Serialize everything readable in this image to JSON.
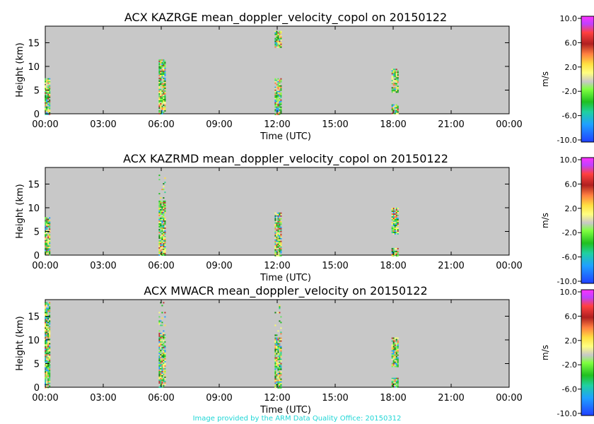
{
  "chart_data": [
    {
      "type": "heatmap",
      "title": "ACX KAZRGE mean_doppler_velocity_copol on 20150122",
      "xlabel": "Time (UTC)",
      "ylabel": "Height (km)",
      "xlim": [
        0,
        24
      ],
      "ylim": [
        0,
        18.5
      ],
      "x_ticks": [
        "00:00",
        "03:00",
        "06:00",
        "09:00",
        "12:00",
        "15:00",
        "18:00",
        "21:00",
        "00:00"
      ],
      "y_ticks": [
        0,
        5,
        10,
        15
      ],
      "colorbar": {
        "label": "m/s",
        "range": [
          -10,
          10
        ],
        "ticks": [
          "10.0",
          "6.0",
          "2.0",
          "-2.0",
          "-6.0",
          "-10.0"
        ]
      },
      "echo_columns": [
        {
          "time_h": 0.1,
          "base_km": 0,
          "top_km": 7.5
        },
        {
          "time_h": 6.05,
          "base_km": 0,
          "top_km": 11.5
        },
        {
          "time_h": 12.05,
          "base_km": 0,
          "top_km": 7.5
        },
        {
          "time_h": 12.05,
          "base_km": 14,
          "top_km": 17.5
        },
        {
          "time_h": 18.1,
          "base_km": 0,
          "top_km": 2
        },
        {
          "time_h": 18.1,
          "base_km": 4.5,
          "top_km": 9.5
        }
      ]
    },
    {
      "type": "heatmap",
      "title": "ACX KAZRMD mean_doppler_velocity_copol on 20150122",
      "xlabel": "Time (UTC)",
      "ylabel": "Height (km)",
      "xlim": [
        0,
        24
      ],
      "ylim": [
        0,
        18.5
      ],
      "x_ticks": [
        "00:00",
        "03:00",
        "06:00",
        "09:00",
        "12:00",
        "15:00",
        "18:00",
        "21:00",
        "00:00"
      ],
      "y_ticks": [
        0,
        5,
        10,
        15
      ],
      "colorbar": {
        "label": "m/s",
        "range": [
          -10,
          10
        ],
        "ticks": [
          "10.0",
          "6.0",
          "2.0",
          "-2.0",
          "-6.0",
          "-10.0"
        ]
      },
      "echo_columns": [
        {
          "time_h": 0.1,
          "base_km": 0,
          "top_km": 8
        },
        {
          "time_h": 6.05,
          "base_km": 0,
          "top_km": 11.5
        },
        {
          "time_h": 6.05,
          "base_km": 12,
          "top_km": 17
        },
        {
          "time_h": 12.05,
          "base_km": 0,
          "top_km": 9
        },
        {
          "time_h": 18.1,
          "base_km": 0,
          "top_km": 1.5
        },
        {
          "time_h": 18.1,
          "base_km": 4.5,
          "top_km": 10
        }
      ]
    },
    {
      "type": "heatmap",
      "title": "ACX MWACR mean_doppler_velocity on 20150122",
      "xlabel": "Time (UTC)",
      "ylabel": "Height (km)",
      "xlim": [
        0,
        24
      ],
      "ylim": [
        0,
        18.5
      ],
      "x_ticks": [
        "00:00",
        "03:00",
        "06:00",
        "09:00",
        "12:00",
        "15:00",
        "18:00",
        "21:00",
        "00:00"
      ],
      "y_ticks": [
        0,
        5,
        10,
        15
      ],
      "colorbar": {
        "label": "m/s",
        "range": [
          -10,
          10
        ],
        "ticks": [
          "10.0",
          "6.0",
          "2.0",
          "-2.0",
          "-6.0",
          "-10.0"
        ]
      },
      "echo_columns": [
        {
          "time_h": 0.1,
          "base_km": 0,
          "top_km": 18
        },
        {
          "time_h": 6.05,
          "base_km": 0,
          "top_km": 11.5
        },
        {
          "time_h": 6.05,
          "base_km": 12,
          "top_km": 18
        },
        {
          "time_h": 12.05,
          "base_km": 0,
          "top_km": 10.5
        },
        {
          "time_h": 12.05,
          "base_km": 11,
          "top_km": 18
        },
        {
          "time_h": 18.1,
          "base_km": 0,
          "top_km": 2
        },
        {
          "time_h": 18.1,
          "base_km": 4.5,
          "top_km": 10.5
        }
      ]
    }
  ],
  "footer": "Image provided by the ARM Data Quality Office: 20150312"
}
